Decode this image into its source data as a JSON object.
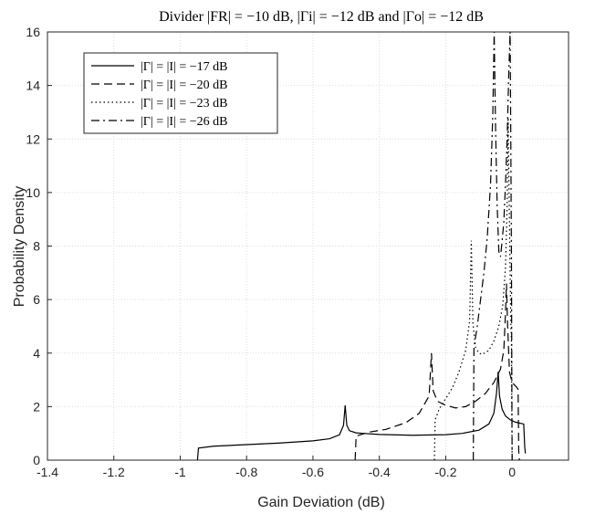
{
  "chart_data": {
    "type": "line",
    "title": "Divider |FR| = −10 dB, |Γi| = −12 dB and |Γo| = −12 dB",
    "xlabel": "Gain Deviation (dB)",
    "ylabel": "Probability Density",
    "xlim": [
      -1.4,
      0.17
    ],
    "ylim": [
      0,
      16
    ],
    "xticks": [
      -1.4,
      -1.2,
      -1,
      -0.8,
      -0.6,
      -0.4,
      -0.2,
      0
    ],
    "xtick_labels": [
      "-1.4",
      "-1.2",
      "-1",
      "-0.8",
      "-0.6",
      "-0.4",
      "-0.2",
      "0"
    ],
    "yticks": [
      0,
      2,
      4,
      6,
      8,
      10,
      12,
      14,
      16
    ],
    "ytick_labels": [
      "0",
      "2",
      "4",
      "6",
      "8",
      "10",
      "12",
      "14",
      "16"
    ],
    "grid": true,
    "legend_position": "top-left",
    "series": [
      {
        "name": "|Γ| = |I| = −17 dB",
        "dash": "solid",
        "points": [
          [
            -0.948,
            0
          ],
          [
            -0.945,
            0.45
          ],
          [
            -0.9,
            0.52
          ],
          [
            -0.8,
            0.58
          ],
          [
            -0.7,
            0.64
          ],
          [
            -0.6,
            0.72
          ],
          [
            -0.55,
            0.8
          ],
          [
            -0.52,
            0.95
          ],
          [
            -0.508,
            1.3
          ],
          [
            -0.503,
            2.05
          ],
          [
            -0.498,
            1.3
          ],
          [
            -0.49,
            1.1
          ],
          [
            -0.47,
            1.02
          ],
          [
            -0.45,
            1.0
          ],
          [
            -0.4,
            0.96
          ],
          [
            -0.3,
            0.93
          ],
          [
            -0.2,
            0.95
          ],
          [
            -0.15,
            1.0
          ],
          [
            -0.1,
            1.12
          ],
          [
            -0.07,
            1.35
          ],
          [
            -0.055,
            1.75
          ],
          [
            -0.047,
            2.5
          ],
          [
            -0.042,
            3.3
          ],
          [
            -0.038,
            2.4
          ],
          [
            -0.03,
            1.9
          ],
          [
            -0.02,
            1.65
          ],
          [
            -0.005,
            1.5
          ],
          [
            0.01,
            1.42
          ],
          [
            0.035,
            1.35
          ],
          [
            0.038,
            0.5
          ],
          [
            0.04,
            0.25
          ]
        ]
      },
      {
        "name": "|Γ| = |I| = −20 dB",
        "dash": "dashed",
        "points": [
          [
            -0.473,
            0
          ],
          [
            -0.47,
            0.9
          ],
          [
            -0.43,
            1.05
          ],
          [
            -0.38,
            1.15
          ],
          [
            -0.32,
            1.4
          ],
          [
            -0.28,
            1.75
          ],
          [
            -0.25,
            2.4
          ],
          [
            -0.243,
            4.0
          ],
          [
            -0.238,
            2.6
          ],
          [
            -0.225,
            2.2
          ],
          [
            -0.2,
            2.05
          ],
          [
            -0.17,
            1.95
          ],
          [
            -0.14,
            2.0
          ],
          [
            -0.11,
            2.2
          ],
          [
            -0.08,
            2.5
          ],
          [
            -0.055,
            2.9
          ],
          [
            -0.035,
            3.4
          ],
          [
            -0.025,
            4.1
          ],
          [
            -0.02,
            5.5
          ],
          [
            -0.017,
            6.6
          ],
          [
            -0.014,
            5.2
          ],
          [
            -0.008,
            3.3
          ],
          [
            0,
            2.9
          ],
          [
            0.012,
            2.75
          ],
          [
            0.018,
            2.65
          ],
          [
            0.02,
            0.3
          ],
          [
            0.022,
            0
          ]
        ]
      },
      {
        "name": "|Γ| = |I| = −23 dB",
        "dash": "dotted",
        "points": [
          [
            -0.234,
            0
          ],
          [
            -0.232,
            1.5
          ],
          [
            -0.22,
            1.9
          ],
          [
            -0.2,
            2.3
          ],
          [
            -0.18,
            2.7
          ],
          [
            -0.16,
            3.3
          ],
          [
            -0.14,
            4.1
          ],
          [
            -0.128,
            5.2
          ],
          [
            -0.123,
            8.2
          ],
          [
            -0.118,
            5.1
          ],
          [
            -0.11,
            4.2
          ],
          [
            -0.1,
            4.0
          ],
          [
            -0.09,
            3.95
          ],
          [
            -0.07,
            4.1
          ],
          [
            -0.055,
            4.45
          ],
          [
            -0.04,
            5.0
          ],
          [
            -0.028,
            5.8
          ],
          [
            -0.02,
            7.2
          ],
          [
            -0.015,
            9.5
          ],
          [
            -0.012,
            12.8
          ],
          [
            -0.009,
            9.8
          ],
          [
            -0.006,
            7.0
          ],
          [
            -0.004,
            5.2
          ],
          [
            -0.002,
            4.4
          ],
          [
            0,
            0
          ]
        ]
      },
      {
        "name": "|Γ| = |I| = −26 dB",
        "dash": "dashdot",
        "points": [
          [
            -0.117,
            0
          ],
          [
            -0.115,
            4.2
          ],
          [
            -0.105,
            5.0
          ],
          [
            -0.095,
            6.0
          ],
          [
            -0.085,
            7.0
          ],
          [
            -0.075,
            8.3
          ],
          [
            -0.065,
            10.3
          ],
          [
            -0.058,
            13.0
          ],
          [
            -0.054,
            16.0
          ],
          [
            -0.05,
            12.5
          ],
          [
            -0.045,
            9.5
          ],
          [
            -0.04,
            7.8
          ],
          [
            -0.035,
            7.6
          ],
          [
            -0.03,
            8.2
          ],
          [
            -0.025,
            8.9
          ],
          [
            -0.02,
            10.3
          ],
          [
            -0.015,
            12.0
          ],
          [
            -0.01,
            14.5
          ],
          [
            -0.006,
            16.0
          ],
          [
            -0.004,
            12.0
          ],
          [
            -0.002,
            7.5
          ],
          [
            0,
            0
          ]
        ]
      }
    ]
  }
}
